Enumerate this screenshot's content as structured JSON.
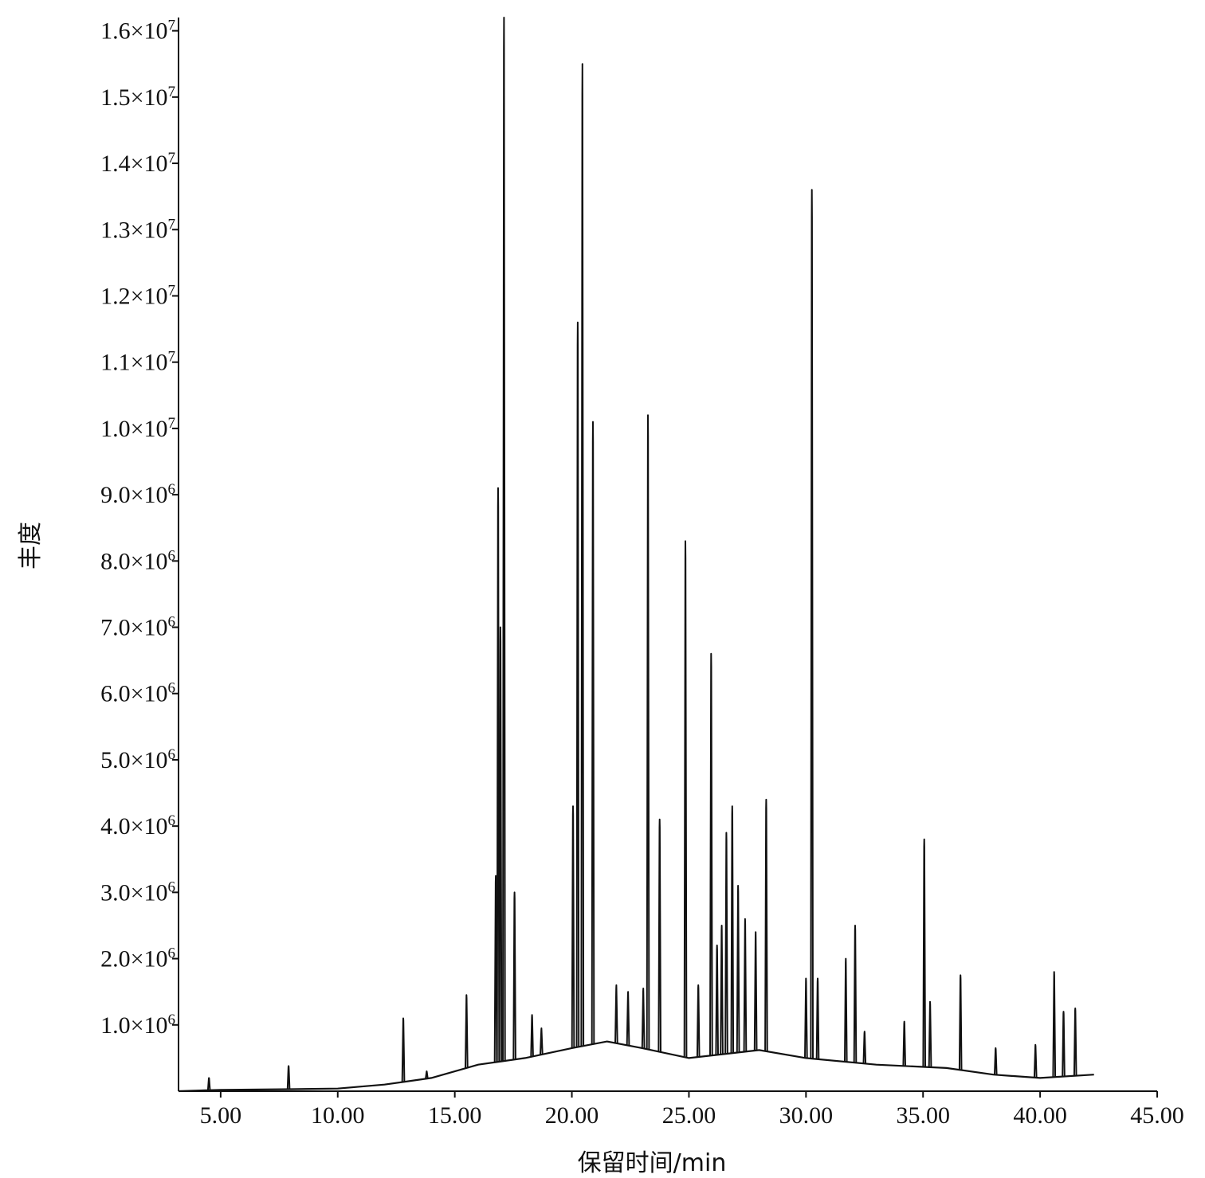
{
  "chart_data": {
    "type": "line",
    "title": "",
    "xlabel": "保留时间/min",
    "ylabel": "丰度",
    "xlim": [
      3.2,
      45.0
    ],
    "ylim": [
      0,
      16200000
    ],
    "x_ticks": [
      {
        "value": 5.0,
        "label": "5.00"
      },
      {
        "value": 10.0,
        "label": "10.00"
      },
      {
        "value": 15.0,
        "label": "15.00"
      },
      {
        "value": 20.0,
        "label": "20.00"
      },
      {
        "value": 25.0,
        "label": "25.00"
      },
      {
        "value": 30.0,
        "label": "30.00"
      },
      {
        "value": 35.0,
        "label": "35.00"
      },
      {
        "value": 40.0,
        "label": "40.00"
      },
      {
        "value": 45.0,
        "label": "45.00"
      }
    ],
    "y_ticks": [
      {
        "value": 1000000,
        "mantissa": "1.0×10",
        "exponent": "6"
      },
      {
        "value": 2000000,
        "mantissa": "2.0×10",
        "exponent": "6"
      },
      {
        "value": 3000000,
        "mantissa": "3.0×10",
        "exponent": "6"
      },
      {
        "value": 4000000,
        "mantissa": "4.0×10",
        "exponent": "6"
      },
      {
        "value": 5000000,
        "mantissa": "5.0×10",
        "exponent": "6"
      },
      {
        "value": 6000000,
        "mantissa": "6.0×10",
        "exponent": "6"
      },
      {
        "value": 7000000,
        "mantissa": "7.0×10",
        "exponent": "6"
      },
      {
        "value": 8000000,
        "mantissa": "8.0×10",
        "exponent": "6"
      },
      {
        "value": 9000000,
        "mantissa": "9.0×10",
        "exponent": "6"
      },
      {
        "value": 10000000,
        "mantissa": "1.0×10",
        "exponent": "7"
      },
      {
        "value": 11000000,
        "mantissa": "1.1×10",
        "exponent": "7"
      },
      {
        "value": 12000000,
        "mantissa": "1.2×10",
        "exponent": "7"
      },
      {
        "value": 13000000,
        "mantissa": "1.3×10",
        "exponent": "7"
      },
      {
        "value": 14000000,
        "mantissa": "1.4×10",
        "exponent": "7"
      },
      {
        "value": 15000000,
        "mantissa": "1.5×10",
        "exponent": "7"
      },
      {
        "value": 16000000,
        "mantissa": "1.6×10",
        "exponent": "7"
      }
    ],
    "baseline": [
      [
        3.2,
        0
      ],
      [
        5.0,
        20000
      ],
      [
        8.0,
        30000
      ],
      [
        10.0,
        40000
      ],
      [
        12.0,
        100000
      ],
      [
        14.0,
        200000
      ],
      [
        16.0,
        400000
      ],
      [
        18.0,
        500000
      ],
      [
        20.0,
        650000
      ],
      [
        21.5,
        750000
      ],
      [
        23.0,
        650000
      ],
      [
        25.0,
        500000
      ],
      [
        28.0,
        620000
      ],
      [
        30.0,
        500000
      ],
      [
        33.0,
        400000
      ],
      [
        36.0,
        350000
      ],
      [
        38.0,
        250000
      ],
      [
        40.0,
        200000
      ],
      [
        42.3,
        250000
      ]
    ],
    "peaks": [
      [
        4.5,
        200000
      ],
      [
        7.9,
        380000
      ],
      [
        12.8,
        1100000
      ],
      [
        13.8,
        300000
      ],
      [
        15.5,
        1450000
      ],
      [
        16.75,
        3250000
      ],
      [
        16.85,
        9100000
      ],
      [
        16.95,
        7000000
      ],
      [
        17.1,
        16200000
      ],
      [
        17.55,
        3000000
      ],
      [
        18.3,
        1150000
      ],
      [
        18.7,
        950000
      ],
      [
        20.05,
        4300000
      ],
      [
        20.25,
        11600000
      ],
      [
        20.45,
        15500000
      ],
      [
        20.9,
        10100000
      ],
      [
        21.9,
        1600000
      ],
      [
        22.4,
        1500000
      ],
      [
        23.05,
        1550000
      ],
      [
        23.25,
        10200000
      ],
      [
        23.75,
        4100000
      ],
      [
        24.85,
        8300000
      ],
      [
        25.4,
        1600000
      ],
      [
        25.95,
        6600000
      ],
      [
        26.2,
        2200000
      ],
      [
        26.4,
        2500000
      ],
      [
        26.6,
        3900000
      ],
      [
        26.85,
        4300000
      ],
      [
        27.1,
        3100000
      ],
      [
        27.4,
        2600000
      ],
      [
        27.85,
        2400000
      ],
      [
        28.3,
        4400000
      ],
      [
        30.0,
        1700000
      ],
      [
        30.25,
        13600000
      ],
      [
        30.5,
        1700000
      ],
      [
        31.7,
        2000000
      ],
      [
        32.1,
        2500000
      ],
      [
        32.5,
        900000
      ],
      [
        34.2,
        1050000
      ],
      [
        35.05,
        3800000
      ],
      [
        35.3,
        1350000
      ],
      [
        36.6,
        1750000
      ],
      [
        38.1,
        650000
      ],
      [
        39.8,
        700000
      ],
      [
        40.6,
        1800000
      ],
      [
        41.0,
        1200000
      ],
      [
        41.5,
        1250000
      ]
    ]
  }
}
